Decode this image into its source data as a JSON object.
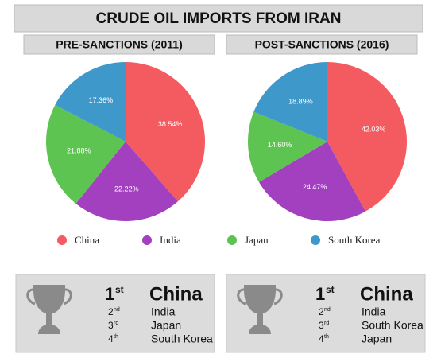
{
  "title": "CRUDE OIL IMPORTS FROM IRAN",
  "chart_data": [
    {
      "type": "pie",
      "title": "PRE-SANCTIONS (2011)",
      "categories": [
        "China",
        "India",
        "Japan",
        "South Korea"
      ],
      "values": [
        38.54,
        22.22,
        21.88,
        17.36
      ],
      "value_labels": [
        "38.54%",
        "22.22%",
        "21.88%",
        "17.36%"
      ],
      "colors": [
        "#f45b60",
        "#a340bf",
        "#5ec451",
        "#3e98c9"
      ]
    },
    {
      "type": "pie",
      "title": "POST-SANCTIONS (2016)",
      "categories": [
        "China",
        "India",
        "Japan",
        "South Korea"
      ],
      "values": [
        42.03,
        24.47,
        14.6,
        18.89
      ],
      "value_labels": [
        "42.03%",
        "24.47%",
        "14.60%",
        "18.89%"
      ],
      "colors": [
        "#f45b60",
        "#a340bf",
        "#5ec451",
        "#3e98c9"
      ]
    }
  ],
  "rankings": [
    [
      {
        "rank": "1",
        "suffix": "st",
        "name": "China"
      },
      {
        "rank": "2",
        "suffix": "nd",
        "name": "India"
      },
      {
        "rank": "3",
        "suffix": "rd",
        "name": "Japan"
      },
      {
        "rank": "4",
        "suffix": "th",
        "name": "South Korea"
      }
    ],
    [
      {
        "rank": "1",
        "suffix": "st",
        "name": "China"
      },
      {
        "rank": "2",
        "suffix": "nd",
        "name": "India"
      },
      {
        "rank": "3",
        "suffix": "rd",
        "name": "South Korea"
      },
      {
        "rank": "4",
        "suffix": "th",
        "name": "Japan"
      }
    ]
  ]
}
